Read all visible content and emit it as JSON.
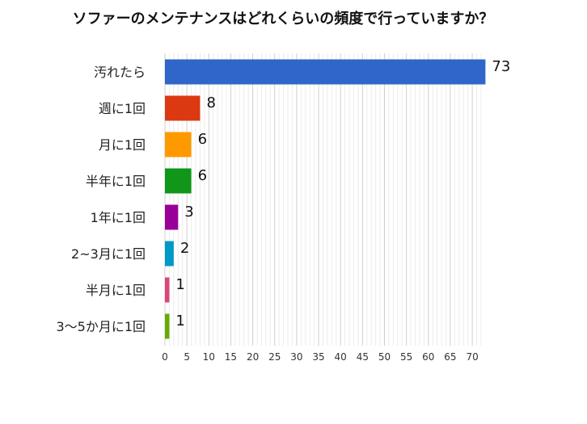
{
  "chart_data": {
    "type": "bar",
    "orientation": "horizontal",
    "title": "ソファーのメンテナンスはどれくらいの頻度で行っていますか？",
    "categories": [
      "汚れたら",
      "週に1回",
      "月に1回",
      "半年に1回",
      "1年に1回",
      "2~3月に1回",
      "半月に1回",
      "3〜5か月に1回"
    ],
    "values": [
      73,
      8,
      6,
      6,
      3,
      2,
      1,
      1
    ],
    "colors": [
      "#3066c9",
      "#dc3912",
      "#ff9900",
      "#109618",
      "#990099",
      "#0099c6",
      "#dd4477",
      "#66aa00"
    ],
    "xlim": [
      0,
      72
    ],
    "xticks": [
      0,
      5,
      10,
      15,
      20,
      25,
      30,
      35,
      40,
      45,
      50,
      55,
      60,
      65,
      70
    ],
    "xlabel": "",
    "ylabel": "",
    "grid": "vertical",
    "legend": "none"
  }
}
